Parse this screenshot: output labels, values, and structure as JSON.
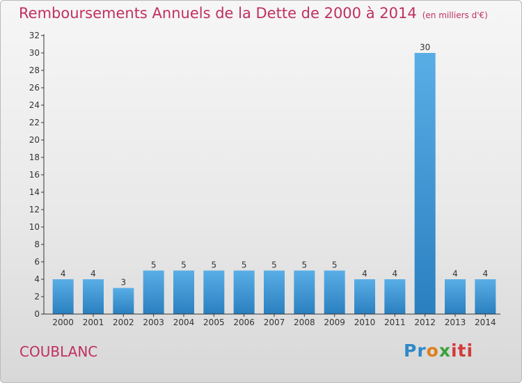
{
  "title": "Remboursements Annuels de la Dette de 2000 à 2014",
  "unit": "(en milliers d'€)",
  "place": "COUBLANC",
  "brand": {
    "parts": [
      "Pr",
      "o",
      "x",
      "iti"
    ]
  },
  "colors": {
    "title": "#c0305e",
    "bar_top": "#5aaee6",
    "bar_bottom": "#2a7fbf"
  },
  "chart_data": {
    "type": "bar",
    "categories": [
      "2000",
      "2001",
      "2002",
      "2003",
      "2004",
      "2005",
      "2006",
      "2007",
      "2008",
      "2009",
      "2010",
      "2011",
      "2012",
      "2013",
      "2014"
    ],
    "values": [
      4,
      4,
      3,
      5,
      5,
      5,
      5,
      5,
      5,
      5,
      4,
      4,
      30,
      4,
      4
    ],
    "ylim": [
      0,
      32
    ],
    "yticks": [
      0,
      2,
      4,
      6,
      8,
      10,
      12,
      14,
      16,
      18,
      20,
      22,
      24,
      26,
      28,
      30,
      32
    ],
    "grid": false,
    "title": "Remboursements Annuels de la Dette de 2000 à 2014",
    "xlabel": "",
    "ylabel": ""
  }
}
